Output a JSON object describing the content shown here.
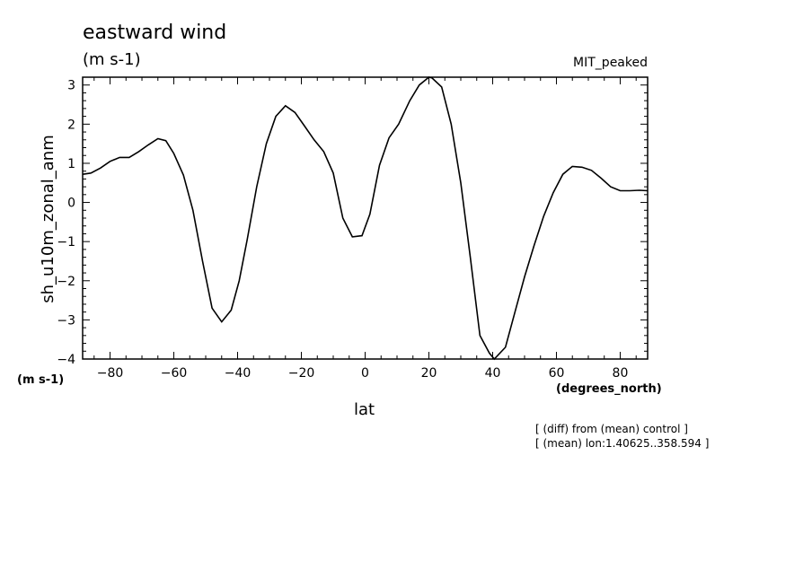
{
  "chart_data": {
    "type": "line",
    "title": "eastward wind",
    "subtitle": "(m s-1)",
    "tag": "MIT_peaked",
    "ylabel": "sh_u10m_zonal_anm",
    "xlabel": "lat",
    "y_unit": "(m s-1)",
    "x_unit": "(degrees_north)",
    "xlim": [
      -88.6,
      88.6
    ],
    "ylim": [
      -4,
      3.2
    ],
    "xticks": [
      -80,
      -60,
      -40,
      -20,
      0,
      20,
      40,
      60,
      80
    ],
    "xtick_labels": [
      "−80",
      "−60",
      "−40",
      "−20",
      "0",
      "20",
      "40",
      "60",
      "80"
    ],
    "yticks": [
      -4,
      -3,
      -2,
      -1,
      0,
      1,
      2,
      3
    ],
    "ytick_labels": [
      "−4",
      "−3",
      "−2",
      "−1",
      "0",
      "1",
      "2",
      "3"
    ],
    "grid": false,
    "series": [
      {
        "x": [
          -88.6,
          -86,
          -83,
          -80,
          -77,
          -74,
          -71,
          -68,
          -65,
          -62.5,
          -60,
          -57,
          -54,
          -51,
          -48,
          -45,
          -42,
          -39.5,
          -37,
          -34,
          -31,
          -28,
          -25,
          -22,
          -19,
          -16,
          -13,
          -10,
          -7,
          -4,
          -1,
          1.5,
          4.5,
          7.5,
          10.5,
          14,
          17,
          20,
          21,
          24,
          27,
          30,
          33,
          36,
          39,
          40.5,
          44,
          47,
          50,
          53,
          56,
          59,
          62,
          65,
          68,
          71,
          74,
          77,
          80,
          83,
          86,
          88.6
        ],
        "y": [
          0.72,
          0.75,
          0.88,
          1.05,
          1.15,
          1.15,
          1.3,
          1.47,
          1.63,
          1.58,
          1.25,
          0.7,
          -0.2,
          -1.5,
          -2.7,
          -3.05,
          -2.75,
          -2.0,
          -0.95,
          0.4,
          1.5,
          2.2,
          2.47,
          2.3,
          1.95,
          1.6,
          1.3,
          0.75,
          -0.4,
          -0.88,
          -0.85,
          -0.3,
          0.95,
          1.65,
          2.0,
          2.6,
          3.0,
          3.2,
          3.18,
          2.95,
          2.0,
          0.5,
          -1.4,
          -3.4,
          -3.85,
          -4.0,
          -3.7,
          -2.8,
          -1.9,
          -1.1,
          -0.35,
          0.25,
          0.72,
          0.92,
          0.9,
          0.82,
          0.62,
          0.4,
          0.3,
          0.3,
          0.31,
          0.3
        ]
      }
    ]
  },
  "notes": [
    "[ (diff) from (mean) control ]",
    "[ (mean) lon:1.40625..358.594 ]"
  ]
}
